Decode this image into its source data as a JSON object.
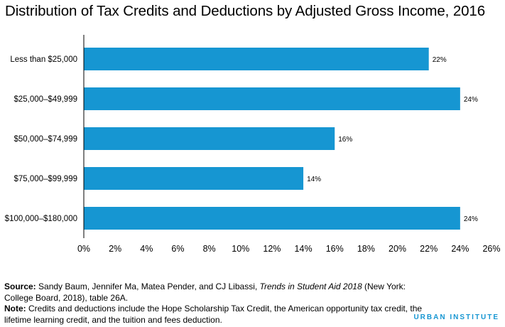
{
  "chart_data": {
    "type": "bar",
    "orientation": "horizontal",
    "title": "Distribution of Tax Credits and Deductions by Adjusted Gross Income, 2016",
    "categories": [
      "Less than $25,000",
      "$25,000–$49,999",
      "$50,000–$74,999",
      "$75,000–$99,999",
      "$100,000–$180,000"
    ],
    "values": [
      22,
      24,
      16,
      14,
      24
    ],
    "data_labels": [
      "22%",
      "24%",
      "16%",
      "14%",
      "24%"
    ],
    "xlim": [
      0,
      26
    ],
    "x_ticks": [
      0,
      2,
      4,
      6,
      8,
      10,
      12,
      14,
      16,
      18,
      20,
      22,
      24,
      26
    ],
    "x_tick_labels": [
      "0%",
      "2%",
      "4%",
      "6%",
      "8%",
      "10%",
      "12%",
      "14%",
      "16%",
      "18%",
      "20%",
      "22%",
      "24%",
      "26%"
    ],
    "bar_color": "#1696d2",
    "grid": false,
    "legend": "none"
  },
  "footnotes": {
    "source_lead": "Source:",
    "source_text_1": " Sandy Baum, Jennifer Ma, Matea Pender, and CJ Libassi, ",
    "source_title": "Trends in Student Aid 2018",
    "source_text_2": " (New York: College Board, 2018), table 26A.",
    "note_lead": "Note:",
    "note_text": " Credits and deductions include the Hope Scholarship Tax Credit, the American opportunity tax credit, the lifetime learning credit, and the tuition and fees deduction."
  },
  "brand": {
    "name": "URBAN INSTITUTE",
    "color": "#1696d2"
  }
}
